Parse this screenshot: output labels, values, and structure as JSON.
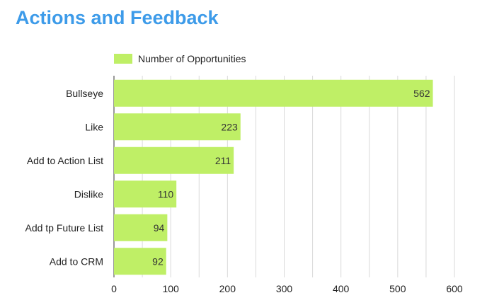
{
  "title": "Actions and Feedback",
  "chart_data": {
    "type": "bar",
    "orientation": "horizontal",
    "categories": [
      "Bullseye",
      "Like",
      "Add to Action List",
      "Dislike",
      "Add tp Future List",
      "Add to CRM"
    ],
    "series": [
      {
        "name": "Number of Opportunities",
        "values": [
          562,
          223,
          211,
          110,
          94,
          92
        ]
      }
    ],
    "xlim": [
      0,
      600
    ],
    "xticks": [
      0,
      100,
      200,
      300,
      400,
      500,
      600
    ],
    "grid": "vertical lines every 50",
    "legend": "top-left",
    "bar_color": "#bfef66",
    "data_labels": "inside-end"
  }
}
